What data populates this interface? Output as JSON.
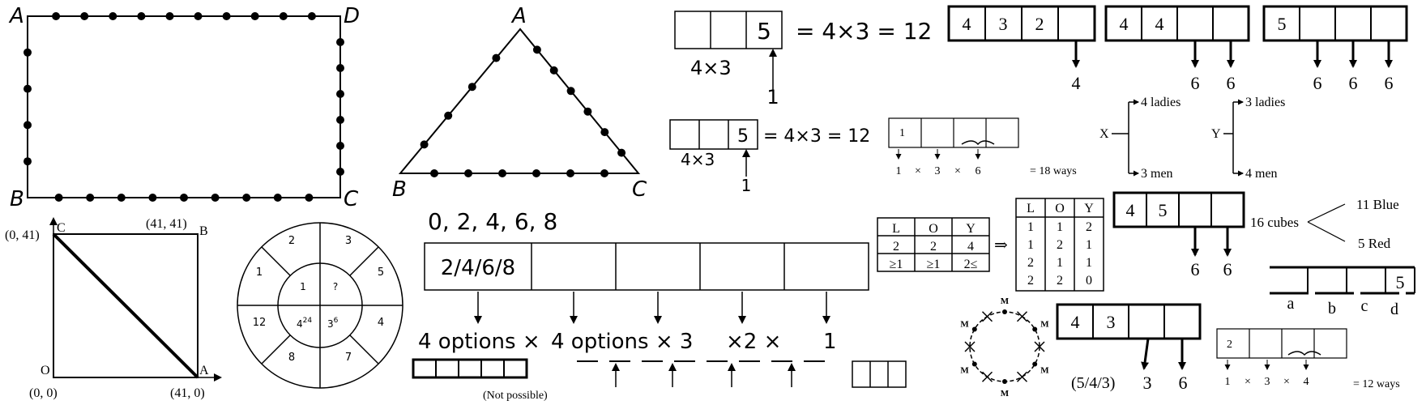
{
  "rectangle_figure": {
    "labels": {
      "a": "A",
      "b": "B",
      "c": "C",
      "d": "D"
    },
    "dot_counts": {
      "top": 10,
      "left": 4,
      "right": 6,
      "bottom": 9
    }
  },
  "triangle_figure": {
    "labels": {
      "a": "A",
      "b": "B",
      "c": "C"
    },
    "dot_counts": {
      "left": 4,
      "right": 6,
      "bottom": 6
    }
  },
  "square_graph": {
    "labels": {
      "c_vertex": "C",
      "c_coord": "(0, 41)",
      "b_vertex": "B",
      "b_coord": "(41, 41)",
      "o_vertex": "O",
      "o_coord": "(0, 0)",
      "a_vertex": "A",
      "a_coord": "(41, 0)"
    }
  },
  "dartboard": {
    "outer_values": [
      "2",
      "3",
      "5",
      "4",
      "7",
      "8",
      "12",
      "1"
    ],
    "inner": {
      "top_left": "1",
      "top_right": "?",
      "bottom_left_base": "4",
      "bottom_left_exp": "24",
      "bottom_right_base": "3",
      "bottom_right_exp": "6"
    }
  },
  "box_eq_top": {
    "box_values": [
      "",
      "",
      "5"
    ],
    "equation": "= 4×3 = 12",
    "below_label": "4×3",
    "arrow_label": "1"
  },
  "box_eq_mid": {
    "box_values": [
      "",
      "",
      "5"
    ],
    "equation": "= 4×3 = 12",
    "below_label": "4×3",
    "arrow_label": "1"
  },
  "boxes_432": {
    "values": [
      "4",
      "3",
      "2",
      ""
    ],
    "arrow_labels": [
      "4"
    ]
  },
  "boxes_44": {
    "values": [
      "4",
      "4",
      "",
      ""
    ],
    "arrow_labels": [
      "6",
      "6"
    ]
  },
  "boxes_5": {
    "values": [
      "5",
      "",
      "",
      ""
    ],
    "arrow_labels": [
      "6",
      "6",
      "6"
    ]
  },
  "ways18": {
    "box_value": "1",
    "row": [
      "1",
      "×",
      "3",
      "×",
      "6"
    ],
    "result": "= 18 ways"
  },
  "tree_x": {
    "root": "X",
    "top": "4 ladies",
    "bottom": "3 men"
  },
  "tree_y": {
    "root": "Y",
    "top": "3 ladies",
    "bottom": "4 men"
  },
  "digits": {
    "heading": "0, 2, 4, 6, 8",
    "first_box": "2/4/6/8",
    "options": [
      "4 options ×",
      "4 options × 3",
      "×2  ×",
      "1"
    ],
    "not_possible": "(Not possible)"
  },
  "loy_table_small": {
    "headers": [
      "L",
      "O",
      "Y"
    ],
    "rows": [
      [
        "2",
        "2",
        "4"
      ],
      [
        "≥1",
        "≥1",
        "2≤"
      ]
    ],
    "implies": "⇒"
  },
  "loy_table_big": {
    "headers": [
      "L",
      "O",
      "Y"
    ],
    "rows": [
      [
        "1",
        "1",
        "2"
      ],
      [
        "1",
        "2",
        "1"
      ],
      [
        "2",
        "1",
        "1"
      ],
      [
        "2",
        "2",
        "0"
      ]
    ]
  },
  "boxes_45": {
    "values": [
      "4",
      "5",
      "",
      ""
    ],
    "arrow_labels": [
      "6",
      "6"
    ]
  },
  "cubes": {
    "total": "16 cubes",
    "blue": "11 Blue",
    "red": "5 Red"
  },
  "abcd": {
    "last_value": "5",
    "letters": [
      "a",
      "b",
      "c",
      "d"
    ]
  },
  "circle_arrangement": {
    "marker": "M"
  },
  "boxes_43": {
    "values": [
      "4",
      "3",
      "",
      ""
    ],
    "caption": "(5/4/3)",
    "arrow_labels": [
      "3",
      "6"
    ]
  },
  "ways12": {
    "box_value": "2",
    "row": [
      "1",
      "×",
      "3",
      "×",
      "4"
    ],
    "result": "= 12 ways"
  }
}
